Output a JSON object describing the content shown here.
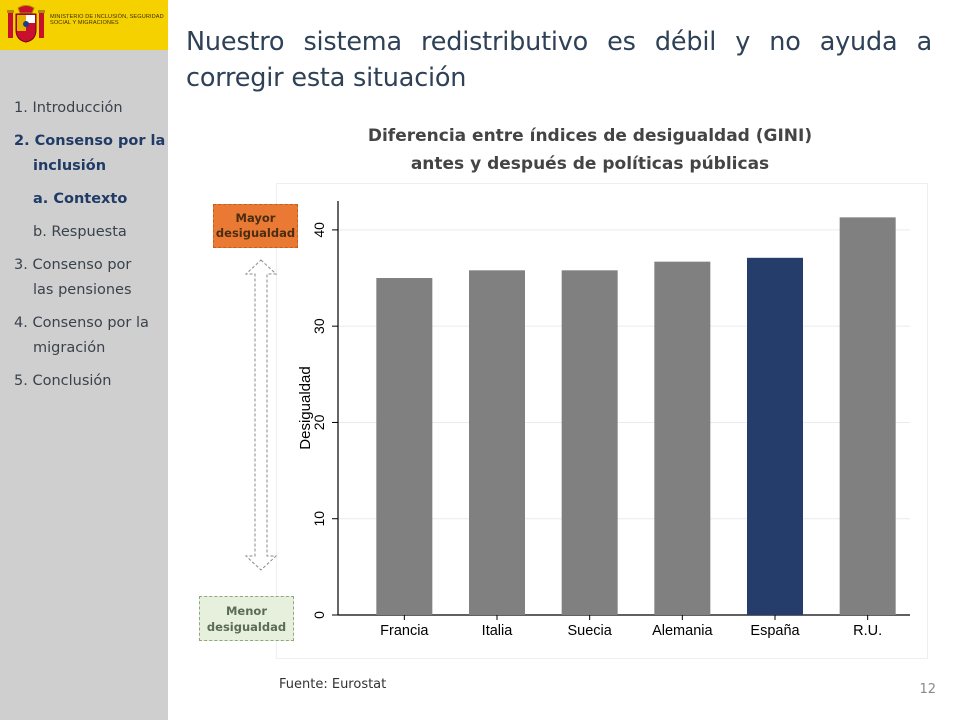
{
  "ministry": {
    "name": "Ministerio de Inclusión, Seguridad Social y Migraciones"
  },
  "sidebar": {
    "items": [
      {
        "label": "1. Introducción",
        "level": 0,
        "active": false
      },
      {
        "label": "2. Consenso por la",
        "level": 0,
        "active": true
      },
      {
        "label": "inclusión",
        "level": 1,
        "active": true
      },
      {
        "label": "a. Contexto",
        "level": 1,
        "active": true
      },
      {
        "label": "b. Respuesta",
        "level": 1,
        "active": false
      },
      {
        "label": "3. Consenso por",
        "level": 0,
        "active": false
      },
      {
        "label": "las pensiones",
        "level": 1,
        "active": false
      },
      {
        "label": "4. Consenso por la",
        "level": 0,
        "active": false
      },
      {
        "label": "migración",
        "level": 1,
        "active": false
      },
      {
        "label": "5. Conclusión",
        "level": 0,
        "active": false
      }
    ]
  },
  "slide": {
    "title": "Nuestro sistema redistributivo es débil y no ayuda a corregir esta situación",
    "source": "Fuente: Eurostat",
    "page_number": "12"
  },
  "legend_boxes": {
    "high": "Mayor desigualdad",
    "low": "Menor desigualdad"
  },
  "colors": {
    "bar_default": "#808080",
    "bar_highlight": "#253d6b",
    "accent_yellow": "#f6d100",
    "sidebar_bg": "#d0cfcf"
  },
  "chart_data": {
    "type": "bar",
    "title_line1": "Diferencia entre índices de desigualdad (GINI)",
    "title_line2": "antes y después de políticas públicas",
    "categories": [
      "Francia",
      "Italia",
      "Suecia",
      "Alemania",
      "España",
      "R.U."
    ],
    "values": [
      35.0,
      35.8,
      35.8,
      36.7,
      37.1,
      41.3
    ],
    "highlight": "España",
    "ylabel": "Desigualdad",
    "xlabel": "",
    "ylim": [
      0,
      43
    ],
    "yticks": [
      0,
      10,
      20,
      30,
      40
    ],
    "grid": true,
    "legend": "none"
  }
}
